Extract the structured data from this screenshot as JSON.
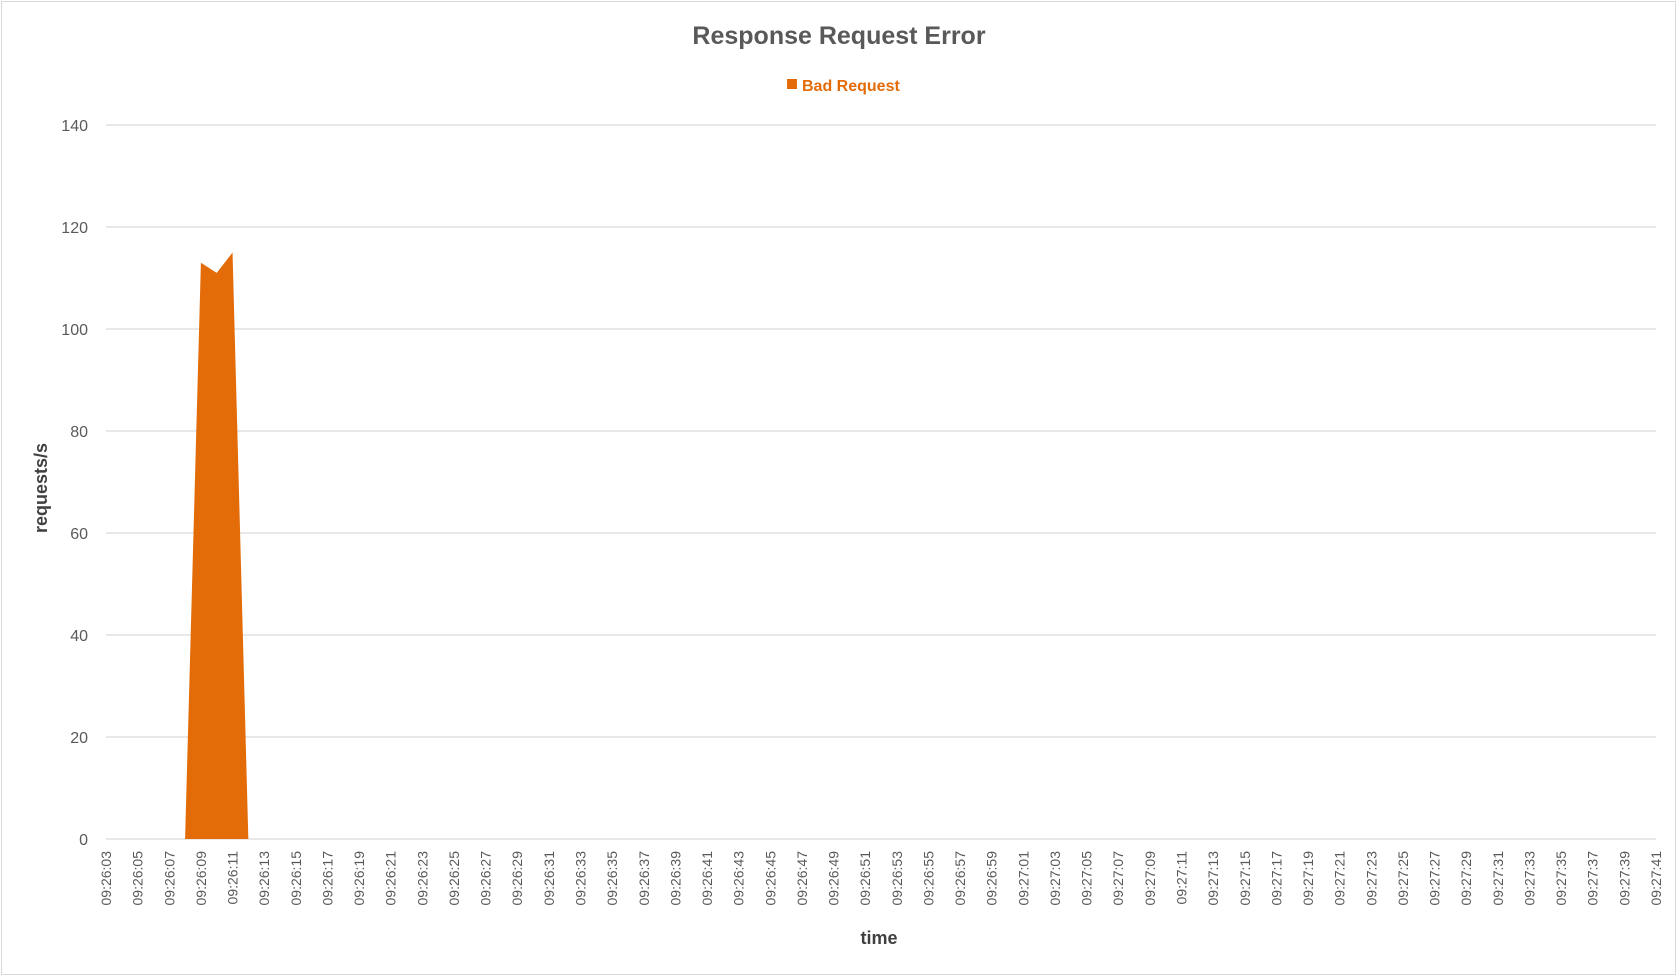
{
  "chart_data": {
    "type": "area",
    "title": "Response Request Error",
    "xlabel": "time",
    "ylabel": "requests/s",
    "ylim": [
      0,
      140
    ],
    "yticks": [
      0,
      20,
      40,
      60,
      80,
      100,
      120,
      140
    ],
    "grid": true,
    "legend_position": "top",
    "x": [
      "09:26:03",
      "09:26:04",
      "09:26:05",
      "09:26:06",
      "09:26:07",
      "09:26:08",
      "09:26:09",
      "09:26:10",
      "09:26:11",
      "09:26:12",
      "09:26:13",
      "09:26:14",
      "09:26:15",
      "09:26:16",
      "09:26:17",
      "09:26:18",
      "09:26:19",
      "09:26:20",
      "09:26:21",
      "09:26:22",
      "09:26:23",
      "09:26:24",
      "09:26:25",
      "09:26:26",
      "09:26:27",
      "09:26:28",
      "09:26:29",
      "09:26:30",
      "09:26:31",
      "09:26:32",
      "09:26:33",
      "09:26:34",
      "09:26:35",
      "09:26:36",
      "09:26:37",
      "09:26:38",
      "09:26:39",
      "09:26:40",
      "09:26:41",
      "09:26:42",
      "09:26:43",
      "09:26:44",
      "09:26:45",
      "09:26:46",
      "09:26:47",
      "09:26:48",
      "09:26:49",
      "09:26:50",
      "09:26:51",
      "09:26:52",
      "09:26:53",
      "09:26:54",
      "09:26:55",
      "09:26:56",
      "09:26:57",
      "09:26:58",
      "09:26:59",
      "09:27:00",
      "09:27:01",
      "09:27:02",
      "09:27:03",
      "09:27:04",
      "09:27:05",
      "09:27:06",
      "09:27:07",
      "09:27:08",
      "09:27:09",
      "09:27:10",
      "09:27:11",
      "09:27:12",
      "09:27:13",
      "09:27:14",
      "09:27:15",
      "09:27:16",
      "09:27:17",
      "09:27:18",
      "09:27:19",
      "09:27:20",
      "09:27:21",
      "09:27:22",
      "09:27:23",
      "09:27:24",
      "09:27:25",
      "09:27:26",
      "09:27:27",
      "09:27:28",
      "09:27:29",
      "09:27:30",
      "09:27:31",
      "09:27:32",
      "09:27:33",
      "09:27:34",
      "09:27:35",
      "09:27:36",
      "09:27:37",
      "09:27:38",
      "09:27:39",
      "09:27:40",
      "09:27:41"
    ],
    "x_tick_labels": [
      "09:26:03",
      "09:26:05",
      "09:26:07",
      "09:26:09",
      "09:26:11",
      "09:26:13",
      "09:26:15",
      "09:26:17",
      "09:26:19",
      "09:26:21",
      "09:26:23",
      "09:26:25",
      "09:26:27",
      "09:26:29",
      "09:26:31",
      "09:26:33",
      "09:26:35",
      "09:26:37",
      "09:26:39",
      "09:26:41",
      "09:26:43",
      "09:26:45",
      "09:26:47",
      "09:26:49",
      "09:26:51",
      "09:26:53",
      "09:26:55",
      "09:26:57",
      "09:26:59",
      "09:27:01",
      "09:27:03",
      "09:27:05",
      "09:27:07",
      "09:27:09",
      "09:27:11",
      "09:27:13",
      "09:27:15",
      "09:27:17",
      "09:27:19",
      "09:27:21",
      "09:27:23",
      "09:27:25",
      "09:27:27",
      "09:27:29",
      "09:27:31",
      "09:27:33",
      "09:27:35",
      "09:27:37",
      "09:27:39",
      "09:27:41"
    ],
    "series": [
      {
        "name": "Bad Request",
        "color": "#e36c09",
        "values": [
          0,
          0,
          0,
          0,
          0,
          0,
          113,
          111,
          115,
          0,
          0,
          0,
          0,
          0,
          0,
          0,
          0,
          0,
          0,
          0,
          0,
          0,
          0,
          0,
          0,
          0,
          0,
          0,
          0,
          0,
          0,
          0,
          0,
          0,
          0,
          0,
          0,
          0,
          0,
          0,
          0,
          0,
          0,
          0,
          0,
          0,
          0,
          0,
          0,
          0,
          0,
          0,
          0,
          0,
          0,
          0,
          0,
          0,
          0,
          0,
          0,
          0,
          0,
          0,
          0,
          0,
          0,
          0,
          0,
          0,
          0,
          0,
          0,
          0,
          0,
          0,
          0,
          0,
          0,
          0,
          0,
          0,
          0,
          0,
          0,
          0,
          0,
          0,
          0,
          0,
          0,
          0,
          0,
          0,
          0,
          0,
          0,
          0,
          0
        ]
      }
    ]
  }
}
